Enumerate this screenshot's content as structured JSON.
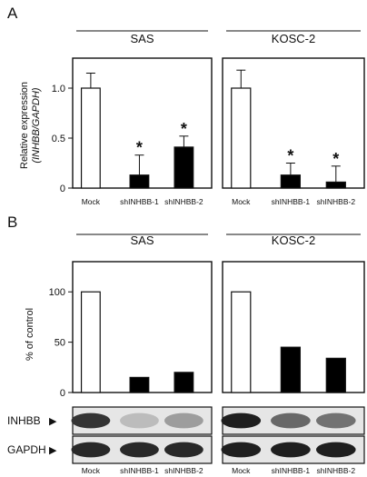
{
  "panels": {
    "A": {
      "letter": "A"
    },
    "B": {
      "letter": "B"
    }
  },
  "chart_data": [
    {
      "id": "A-SAS",
      "panel": "A",
      "type": "bar",
      "group_title": "SAS",
      "categories": [
        "Mock",
        "shINHBB-1",
        "shINHBB-2"
      ],
      "values": [
        1.0,
        0.13,
        0.41
      ],
      "errors": [
        0.15,
        0.2,
        0.11
      ],
      "significant": [
        false,
        true,
        true
      ],
      "bar_fills": [
        "#ffffff",
        "#000000",
        "#000000"
      ],
      "ylabel_line1": "Relative expression",
      "ylabel_line2": "(INHBB/GAPDH)",
      "ylim": [
        0,
        1.3
      ],
      "yticks": [
        0,
        0.5,
        1.0
      ],
      "ytick_labels": [
        "0",
        "0.5",
        "1.0"
      ]
    },
    {
      "id": "A-KOSC2",
      "panel": "A",
      "type": "bar",
      "group_title": "KOSC-2",
      "categories": [
        "Mock",
        "shINHBB-1",
        "shINHBB-2"
      ],
      "values": [
        1.0,
        0.13,
        0.06
      ],
      "errors": [
        0.18,
        0.12,
        0.16
      ],
      "significant": [
        false,
        true,
        true
      ],
      "bar_fills": [
        "#ffffff",
        "#000000",
        "#000000"
      ],
      "ylim": [
        0,
        1.3
      ]
    },
    {
      "id": "B-SAS",
      "panel": "B",
      "type": "bar",
      "group_title": "SAS",
      "categories": [
        "Mock",
        "shINHBB-1",
        "shINHBB-2"
      ],
      "values": [
        100,
        15,
        20
      ],
      "bar_fills": [
        "#ffffff",
        "#000000",
        "#000000"
      ],
      "ylabel": "% of control",
      "ylim": [
        0,
        130
      ],
      "yticks": [
        0,
        50,
        100
      ],
      "ytick_labels": [
        "0",
        "50",
        "100"
      ]
    },
    {
      "id": "B-KOSC2",
      "panel": "B",
      "type": "bar",
      "group_title": "KOSC-2",
      "categories": [
        "Mock",
        "shINHBB-1",
        "shINHBB-2"
      ],
      "values": [
        100,
        45,
        34
      ],
      "bar_fills": [
        "#ffffff",
        "#000000",
        "#000000"
      ],
      "ylim": [
        0,
        130
      ]
    }
  ],
  "significance_marker": "*",
  "blots": {
    "rows": [
      {
        "label": "INHBB",
        "arrow": "▶",
        "SAS": [
          0.85,
          0.2,
          0.35
        ],
        "KOSC-2": [
          0.95,
          0.6,
          0.55
        ]
      },
      {
        "label": "GAPDH",
        "arrow": "▶",
        "SAS": [
          0.9,
          0.9,
          0.9
        ],
        "KOSC-2": [
          0.95,
          0.95,
          0.95
        ]
      }
    ]
  }
}
